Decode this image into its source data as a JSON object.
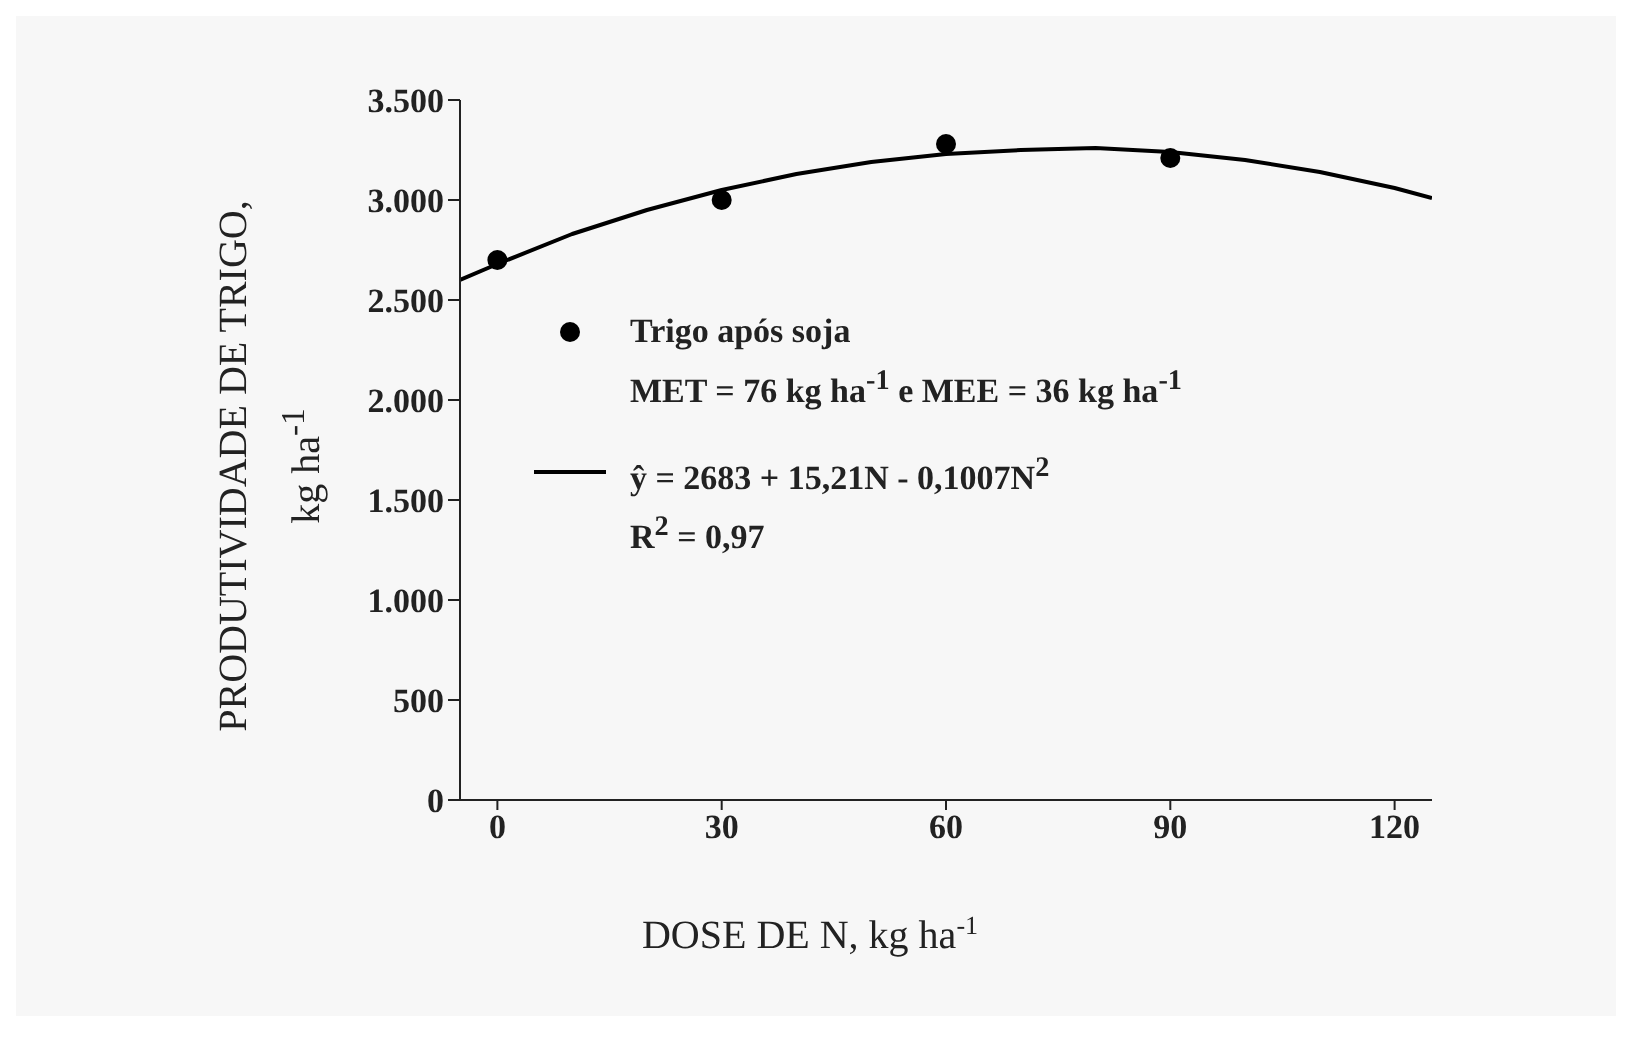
{
  "chart_data": {
    "type": "scatter",
    "xlabel": "DOSE DE N, kg ha$^{-1}$",
    "ylabel": "PRODUTIVIDADE DE TRIGO, kg ha$^{-1}$",
    "xlim": [
      -5,
      125
    ],
    "xticks": [
      0,
      30,
      60,
      90,
      120
    ],
    "ylim": [
      0,
      3500
    ],
    "yticks": [
      {
        "value": 0,
        "label": "0"
      },
      {
        "value": 500,
        "label": "500"
      },
      {
        "value": 1000,
        "label": "1.000"
      },
      {
        "value": 1500,
        "label": "1.500"
      },
      {
        "value": 2000,
        "label": "2.000"
      },
      {
        "value": 2500,
        "label": "2.500"
      },
      {
        "value": 3000,
        "label": "3.000"
      },
      {
        "value": 3500,
        "label": "3.500"
      }
    ],
    "series": [
      {
        "name": "Trigo após soja",
        "color": "#000000",
        "marker": "circle",
        "x": [
          0,
          30,
          60,
          90
        ],
        "values": [
          2700,
          3000,
          3280,
          3210
        ]
      },
      {
        "name": "ŷ = 2683 + 15,21N - 0,1007N$^{2}$",
        "type": "line",
        "color": "#000000",
        "marker": "none",
        "line_style": "solid",
        "x": [
          -5,
          0,
          10,
          20,
          30,
          40,
          50,
          60,
          70,
          80,
          90,
          100,
          110,
          120,
          125
        ],
        "values": [
          2600,
          2680,
          2830,
          2950,
          3050,
          3130,
          3190,
          3230,
          3250,
          3260,
          3240,
          3200,
          3140,
          3060,
          3010
        ]
      }
    ],
    "annotations": [
      "MET = 76 kg ha$^{-1}$ e MEE = 36 kg ha$^{-1}$",
      "R$^{2}$ = 0,97"
    ],
    "legend": "left",
    "grid": false
  }
}
